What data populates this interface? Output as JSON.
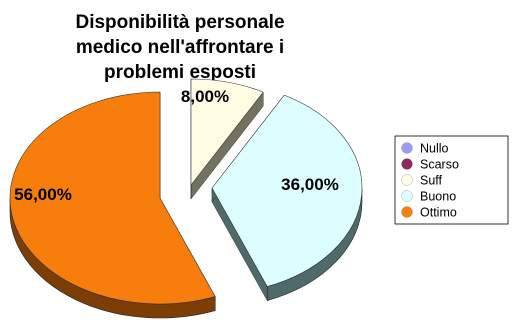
{
  "chart_data": {
    "type": "pie",
    "title_lines": [
      "Disponibilità personale",
      "medico nell'affrontare i",
      "problemi esposti"
    ],
    "categories": [
      "Nullo",
      "Scarso",
      "Suff",
      "Buono",
      "Ottimo"
    ],
    "values": [
      0,
      0,
      8,
      36,
      56
    ],
    "value_labels": [
      "",
      "",
      "8,00%",
      "36,00%",
      "56,00%"
    ],
    "colors": [
      "#9b9bf5",
      "#8b2a5a",
      "#fdfde3",
      "#dcfefe",
      "#f77e0c"
    ],
    "side_colors": [
      "#4b4b80",
      "#45152c",
      "#727260",
      "#4f6a6a",
      "#7d3e06"
    ],
    "legend_position": "right",
    "three_d": true,
    "exploded": true
  }
}
